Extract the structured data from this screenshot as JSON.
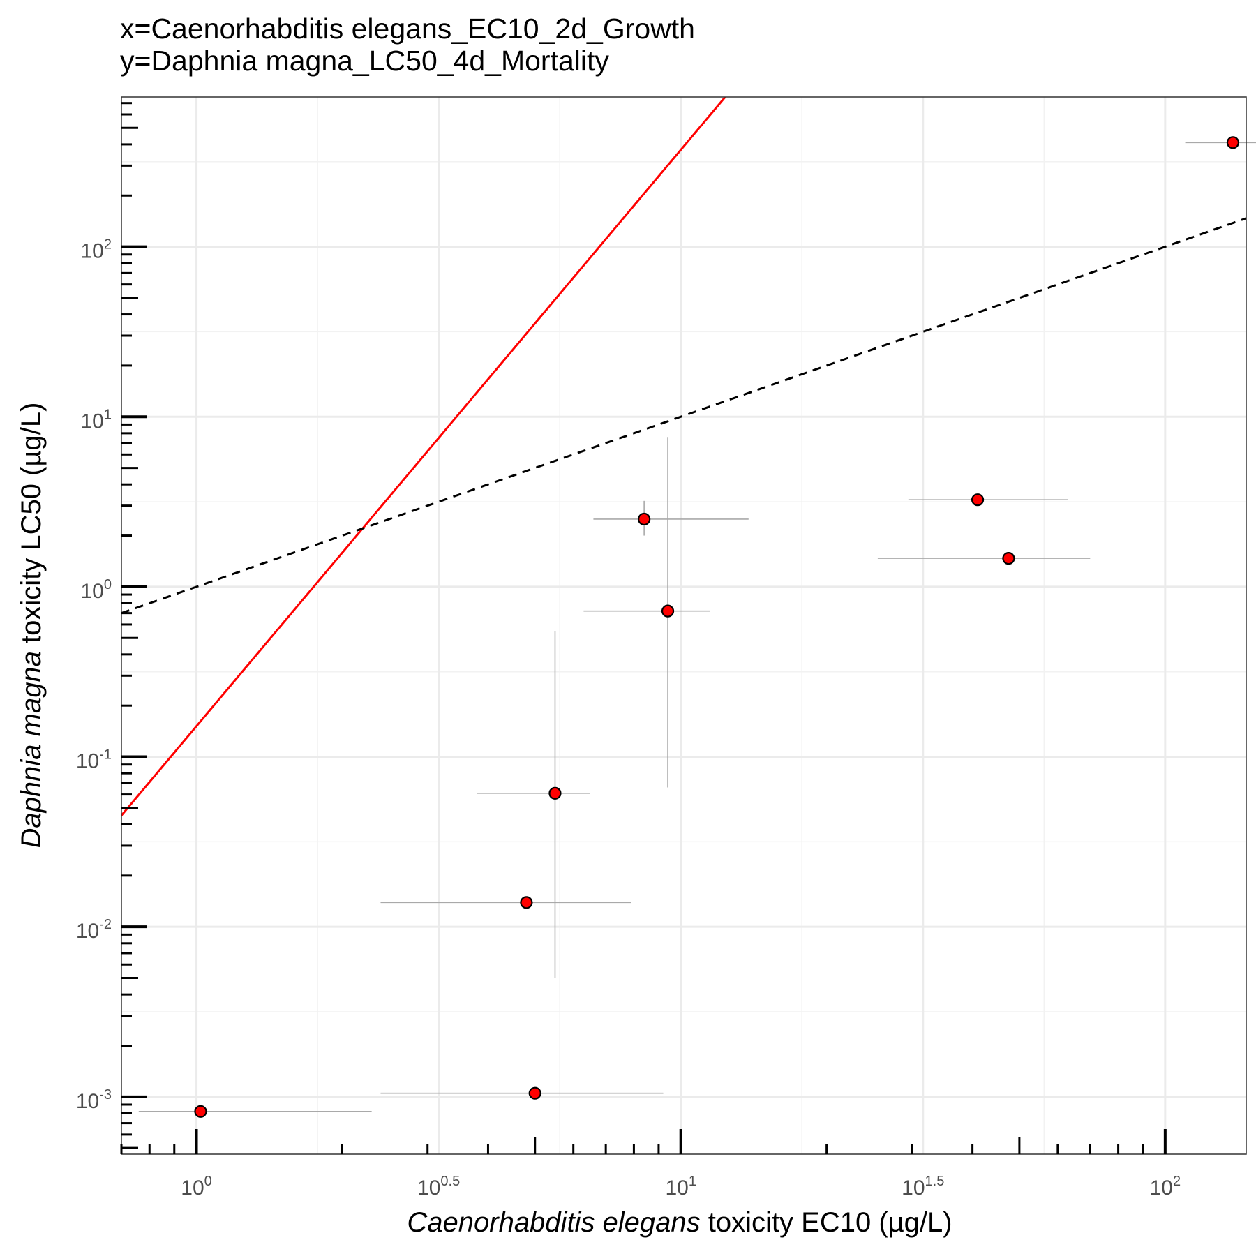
{
  "chart_data": {
    "type": "scatter",
    "title_line1": "x=Caenorhabditis elegans_EC10_2d_Growth",
    "title_line2": "y=Daphnia magna_LC50_4d_Mortality",
    "xlabel_species": "Caenorhabditis elegans",
    "xlabel_rest": " toxicity EC10 (µg/L)",
    "ylabel_species": "Daphnia magna",
    "ylabel_rest": " toxicity LC50 (µg/L)",
    "x_scale": "log10",
    "y_scale": "log10",
    "xlim": [
      0.7,
      147
    ],
    "ylim": [
      0.00046,
      760
    ],
    "x_ticks": [
      {
        "value": 1,
        "base": "10",
        "exp": "0"
      },
      {
        "value": 3.1623,
        "base": "10",
        "exp": "0.5"
      },
      {
        "value": 10,
        "base": "10",
        "exp": "1"
      },
      {
        "value": 31.623,
        "base": "10",
        "exp": "1.5"
      },
      {
        "value": 100,
        "base": "10",
        "exp": "2"
      }
    ],
    "y_ticks": [
      {
        "value": 0.001,
        "base": "10",
        "exp": "-3"
      },
      {
        "value": 0.01,
        "base": "10",
        "exp": "-2"
      },
      {
        "value": 0.1,
        "base": "10",
        "exp": "-1"
      },
      {
        "value": 1,
        "base": "10",
        "exp": "0"
      },
      {
        "value": 10,
        "base": "10",
        "exp": "1"
      },
      {
        "value": 100,
        "base": "10",
        "exp": "2"
      }
    ],
    "grid": true,
    "points": [
      {
        "x": 1.02,
        "y": 0.00082,
        "x_err": [
          0.76,
          2.3
        ],
        "y_err": null
      },
      {
        "x": 5.0,
        "y": 0.00105,
        "x_err": [
          2.4,
          9.2
        ],
        "y_err": null
      },
      {
        "x": 4.8,
        "y": 0.0139,
        "x_err": [
          2.4,
          7.9
        ],
        "y_err": null
      },
      {
        "x": 5.5,
        "y": 0.061,
        "x_err": [
          3.8,
          6.5
        ],
        "y_err": [
          0.005,
          0.55
        ]
      },
      {
        "x": 8.4,
        "y": 2.5,
        "x_err": [
          6.6,
          13.8
        ],
        "y_err": [
          2.0,
          3.2
        ]
      },
      {
        "x": 9.4,
        "y": 0.72,
        "x_err": [
          6.3,
          11.5
        ],
        "y_err": [
          0.066,
          7.6
        ]
      },
      {
        "x": 41,
        "y": 3.25,
        "x_err": [
          29.5,
          63
        ],
        "y_err": null
      },
      {
        "x": 47.5,
        "y": 1.47,
        "x_err": [
          25.5,
          70
        ],
        "y_err": null
      },
      {
        "x": 138,
        "y": 410,
        "x_err": [
          110,
          175
        ],
        "y_err": null
      }
    ],
    "lines": [
      {
        "kind": "regression",
        "style": "solid",
        "color": "#ff0000",
        "intercept_log10": -0.82,
        "slope": 3.39
      },
      {
        "kind": "1:1",
        "style": "dashed",
        "color": "#000000",
        "intercept_log10": 0,
        "slope": 1
      }
    ],
    "colors": {
      "point_fill": "#ff0000",
      "point_stroke": "#000000",
      "errorbar": "#a9a9a9",
      "grid_major": "#ebebeb",
      "grid_minor": "#f2f2f2",
      "panel_border": "#333333"
    }
  }
}
